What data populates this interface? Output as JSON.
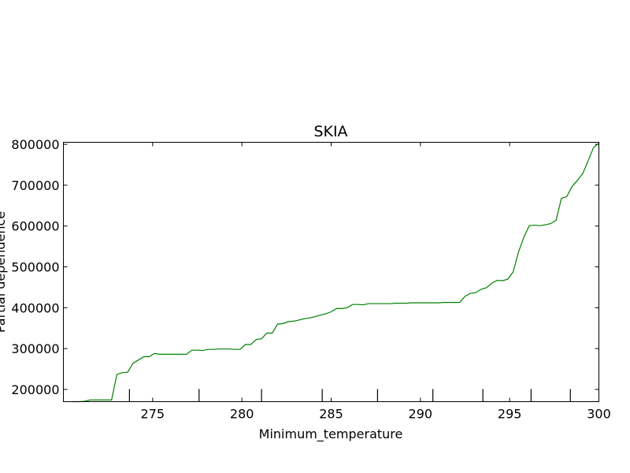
{
  "chart_data": {
    "type": "line",
    "title": "SKIA",
    "xlabel": "Minimum_temperature",
    "ylabel": "Partial dependence",
    "xlim": [
      270,
      300
    ],
    "ylim": [
      170000,
      805000
    ],
    "x_ticks": [
      275,
      280,
      285,
      290,
      295,
      300
    ],
    "x_tick_labels": [
      "275",
      "280",
      "285",
      "290",
      "295",
      "300"
    ],
    "y_ticks": [
      200000,
      300000,
      400000,
      500000,
      600000,
      700000,
      800000
    ],
    "y_tick_labels": [
      "200000",
      "300000",
      "400000",
      "500000",
      "600000",
      "700000",
      "800000"
    ],
    "rug_x": [
      273.7,
      277.6,
      281.1,
      284.5,
      287.6,
      290.7,
      293.5,
      296.2,
      298.4
    ],
    "series": [
      {
        "name": "partial dependence",
        "color": "#008000",
        "x": [
          270.5,
          270.9,
          271.2,
          271.5,
          271.8,
          272.1,
          272.4,
          272.7,
          273.0,
          273.3,
          273.6,
          273.9,
          274.2,
          274.5,
          274.8,
          275.1,
          275.4,
          275.7,
          276.0,
          276.3,
          276.6,
          276.9,
          277.2,
          277.5,
          277.8,
          278.1,
          278.4,
          278.7,
          279.0,
          279.3,
          279.6,
          279.9,
          280.2,
          280.5,
          280.8,
          281.1,
          281.4,
          281.7,
          282.0,
          282.3,
          282.6,
          282.9,
          283.2,
          283.5,
          283.8,
          284.1,
          284.4,
          284.7,
          285.0,
          285.3,
          285.6,
          285.9,
          286.2,
          286.5,
          286.8,
          287.1,
          287.4,
          287.7,
          288.0,
          288.3,
          288.6,
          288.9,
          289.2,
          289.5,
          289.8,
          290.1,
          290.4,
          290.7,
          291.0,
          291.3,
          291.6,
          291.9,
          292.2,
          292.5,
          292.8,
          293.1,
          293.4,
          293.7,
          294.0,
          294.3,
          294.6,
          294.9,
          295.2,
          295.5,
          295.8,
          296.1,
          296.4,
          296.7,
          297.0,
          297.3,
          297.6,
          297.9,
          298.2,
          298.5,
          298.8,
          299.1,
          299.4,
          299.7,
          300.0
        ],
        "y": [
          170000,
          170000,
          171000,
          174000,
          174000,
          174000,
          174000,
          174000,
          237000,
          241000,
          242000,
          264000,
          272000,
          280000,
          280000,
          288000,
          286000,
          286000,
          286000,
          286000,
          286000,
          286000,
          296000,
          296000,
          295000,
          298000,
          298000,
          299000,
          299000,
          299000,
          298000,
          298000,
          310000,
          310000,
          322000,
          324000,
          338000,
          338000,
          360000,
          361000,
          366000,
          367000,
          370000,
          373000,
          375000,
          378000,
          382000,
          385000,
          390000,
          398000,
          398000,
          400000,
          408000,
          408000,
          407000,
          410000,
          410000,
          410000,
          410000,
          410000,
          411000,
          411000,
          411000,
          412000,
          412000,
          412000,
          412000,
          412000,
          412000,
          413000,
          413000,
          413000,
          413000,
          428000,
          435000,
          437000,
          445000,
          449000,
          460000,
          467000,
          466000,
          470000,
          488000,
          537000,
          573000,
          601000,
          602000,
          601000,
          603000,
          606000,
          614000,
          668000,
          672000,
          697000,
          712000,
          729000,
          760000,
          792000,
          803000
        ]
      }
    ]
  }
}
